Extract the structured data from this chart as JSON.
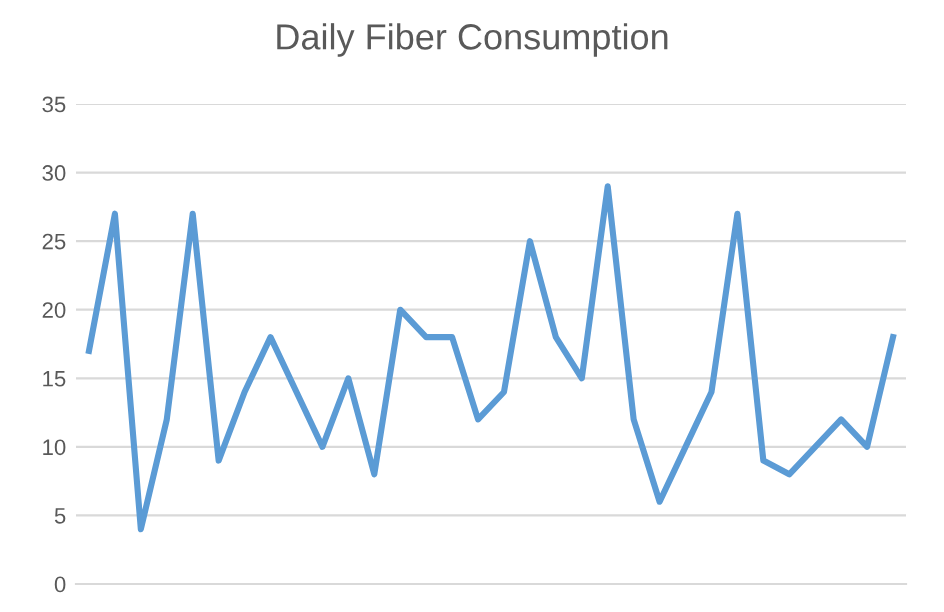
{
  "chart_data": {
    "type": "line",
    "title": "Daily Fiber Consumption",
    "categories": [
      null,
      null,
      null,
      null,
      null,
      null,
      null,
      null,
      null,
      null,
      null,
      null,
      null,
      null,
      null,
      null,
      null,
      null,
      null,
      null,
      null,
      null,
      null,
      null,
      null,
      null,
      null,
      null,
      null,
      null,
      null,
      null
    ],
    "series": [
      {
        "color": "#5b9bd5",
        "values": [
          17,
          27,
          4,
          12,
          27,
          9,
          14,
          18,
          14,
          10,
          15,
          8,
          20,
          18,
          18,
          12,
          14,
          25,
          18,
          15,
          29,
          12,
          6,
          10,
          14,
          27,
          9,
          8,
          10,
          12,
          10,
          18
        ]
      }
    ],
    "ylim": [
      0,
      35
    ],
    "yticks": [
      0,
      5,
      10,
      15,
      20,
      25,
      30,
      35
    ],
    "grid": "y",
    "legend": false,
    "marker": "none",
    "line_style": "solid"
  }
}
